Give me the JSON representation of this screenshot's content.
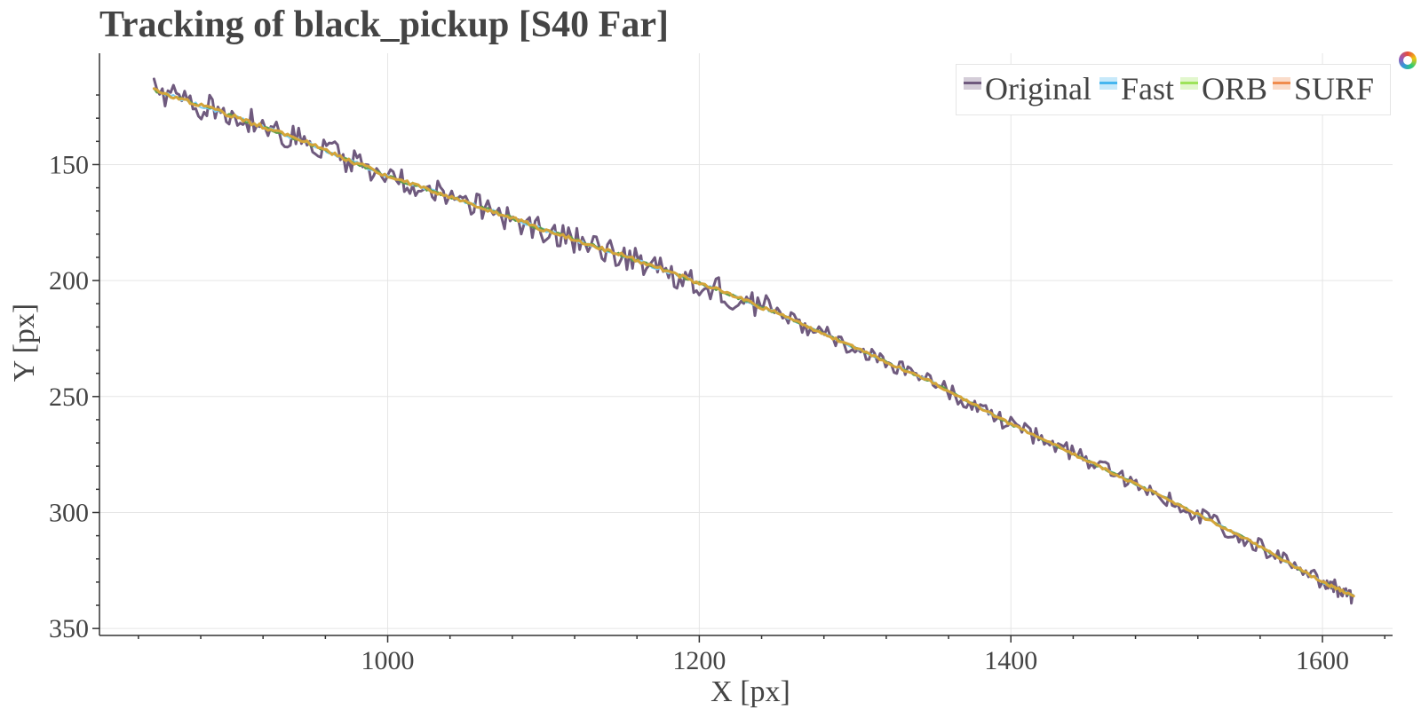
{
  "chart_data": {
    "type": "line",
    "title": "Tracking of black_pickup [S40 Far]",
    "xlabel": "X [px]",
    "ylabel": "Y [px]",
    "xlim": [
      815,
      1645
    ],
    "ylim": [
      353,
      102
    ],
    "y_axis_inverted": true,
    "grid": true,
    "legend_position": "top-right",
    "x_ticks": [
      1000,
      1200,
      1400,
      1600
    ],
    "y_ticks": [
      150,
      200,
      250,
      300,
      350
    ],
    "series": [
      {
        "name": "Original",
        "color": "#6f5a7e",
        "width": 3,
        "noise": 4.5,
        "x": [
          850,
          900,
          950,
          1000,
          1050,
          1100,
          1150,
          1200,
          1250,
          1300,
          1350,
          1400,
          1450,
          1500,
          1550,
          1600,
          1620
        ],
        "y": [
          118,
          129,
          141,
          155,
          166,
          178,
          189,
          201,
          214,
          229,
          244,
          262,
          278,
          294,
          311,
          330,
          336
        ]
      },
      {
        "name": "Fast",
        "color": "#7ecdf4",
        "width": 2,
        "noise": 0.6,
        "x": [
          850,
          900,
          950,
          1000,
          1050,
          1100,
          1150,
          1200,
          1250,
          1300,
          1350,
          1400,
          1450,
          1500,
          1550,
          1600,
          1620
        ],
        "y": [
          118,
          129,
          141,
          155,
          166,
          178,
          189,
          201,
          214,
          229,
          244,
          262,
          278,
          294,
          311,
          330,
          336
        ]
      },
      {
        "name": "ORB",
        "color": "#5f9e4a",
        "width": 2,
        "noise": 0.6,
        "x": [
          850,
          900,
          950,
          1000,
          1050,
          1100,
          1150,
          1200,
          1250,
          1300,
          1350,
          1400,
          1450,
          1500,
          1550,
          1600,
          1620
        ],
        "y": [
          118,
          129,
          141,
          155,
          166,
          178,
          189,
          201,
          214,
          229,
          244,
          262,
          278,
          294,
          311,
          330,
          336
        ]
      },
      {
        "name": "SURF",
        "color": "#d4a53a",
        "width": 3,
        "noise": 0.7,
        "x": [
          850,
          900,
          950,
          1000,
          1050,
          1100,
          1150,
          1200,
          1250,
          1300,
          1350,
          1400,
          1450,
          1500,
          1550,
          1600,
          1620
        ],
        "y": [
          118,
          129,
          141,
          155,
          166,
          178,
          189,
          201,
          214,
          229,
          244,
          262,
          278,
          294,
          311,
          330,
          336
        ]
      }
    ]
  },
  "legend": {
    "items": [
      {
        "label": "Original",
        "color": "#6f5a7e"
      },
      {
        "label": "Fast",
        "color": "#46b6ef"
      },
      {
        "label": "ORB",
        "color": "#9ee35b"
      },
      {
        "label": "SURF",
        "color": "#f08c4e"
      }
    ]
  },
  "toolbar": {
    "logo_icon": "bokeh-logo-icon"
  }
}
